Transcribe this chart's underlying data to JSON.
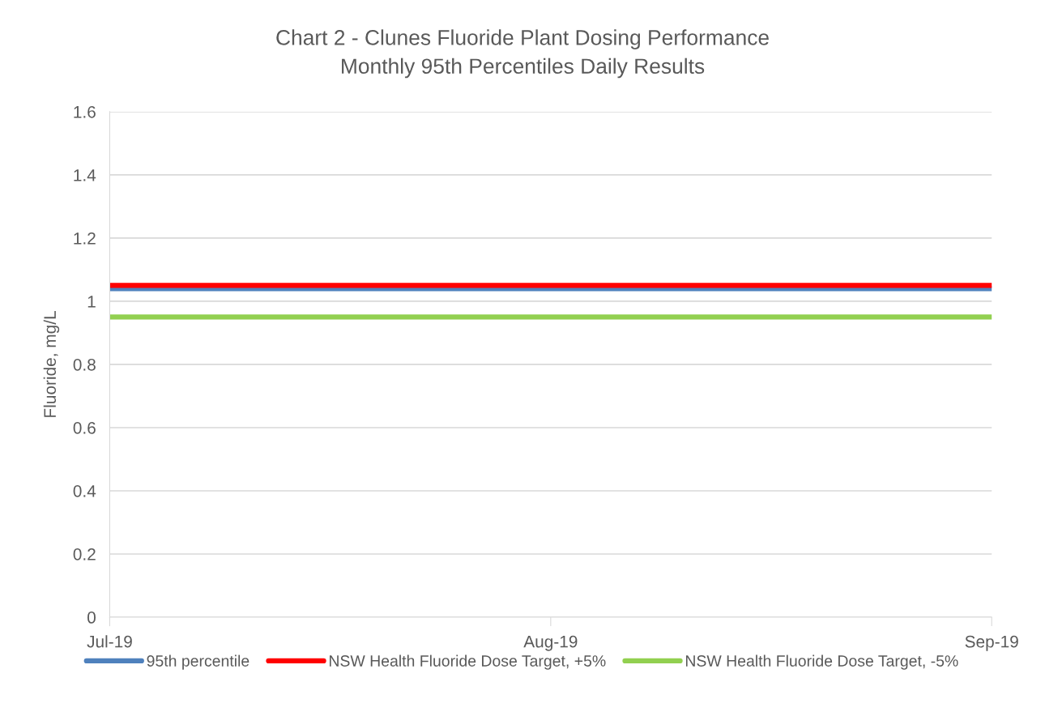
{
  "chart_data": {
    "type": "line",
    "title": "Chart 2 - Clunes Fluoride Plant Dosing Performance",
    "subtitle": "Monthly 95th Percentiles Daily Results",
    "ylabel": "Fluoride, mg/L",
    "categories": [
      "Jul-19",
      "Aug-19",
      "Sep-19"
    ],
    "series": [
      {
        "name": "95th percentile",
        "color": "#4f81bd",
        "values": [
          1.04,
          1.04,
          1.04
        ]
      },
      {
        "name": "NSW Health Fluoride Dose Target, +5%",
        "color": "#ff0000",
        "values": [
          1.05,
          1.05,
          1.05
        ]
      },
      {
        "name": "NSW Health Fluoride Dose Target, -5%",
        "color": "#92d050",
        "values": [
          0.95,
          0.95,
          0.95
        ]
      }
    ],
    "ylim": [
      0,
      1.6
    ],
    "yticks": [
      0,
      0.2,
      0.4,
      0.6,
      0.8,
      1,
      1.2,
      1.4,
      1.6
    ],
    "grid": "y",
    "legend": "bottom",
    "marker": "none",
    "line_style": "solid"
  }
}
